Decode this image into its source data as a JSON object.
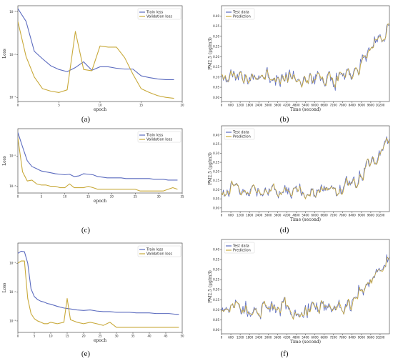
{
  "chart_data": [
    {
      "panel": "(a)",
      "type": "line",
      "xlabel": "epoch",
      "ylabel": "Loss",
      "xlim": [
        0,
        20
      ],
      "yscale": "log",
      "ylim": [
        0.0008,
        0.14
      ],
      "xticks": [
        0,
        5,
        10,
        15,
        20
      ],
      "yticks": [
        {
          "v": 0.1,
          "label": "10⁻¹"
        },
        {
          "v": 0.01,
          "label": "10⁻²"
        },
        {
          "v": 0.001,
          "label": "10⁻³"
        }
      ],
      "legend": "top-right",
      "series": [
        {
          "name": "Train loss",
          "color": "#5b6bbf",
          "x": [
            0,
            1,
            2,
            3,
            4,
            5,
            6,
            7,
            8,
            9,
            10,
            11,
            12,
            13,
            14,
            15,
            16,
            17,
            18,
            19
          ],
          "y": [
            0.12,
            0.06,
            0.012,
            0.008,
            0.0055,
            0.0045,
            0.004,
            0.005,
            0.0068,
            0.0043,
            0.0052,
            0.0052,
            0.0048,
            0.0046,
            0.0046,
            0.0032,
            0.0029,
            0.0027,
            0.0026,
            0.0026
          ]
        },
        {
          "name": "Validation loss",
          "color": "#c8a93a",
          "x": [
            0,
            1,
            2,
            3,
            4,
            5,
            6,
            7,
            8,
            9,
            10,
            11,
            12,
            13,
            14,
            15,
            16,
            17,
            18,
            19
          ],
          "y": [
            0.06,
            0.009,
            0.003,
            0.0016,
            0.0014,
            0.0013,
            0.0015,
            0.035,
            0.0045,
            0.0042,
            0.016,
            0.015,
            0.015,
            0.0085,
            0.0035,
            0.0016,
            0.0013,
            0.0011,
            0.001,
            0.00095
          ]
        }
      ]
    },
    {
      "panel": "(b)",
      "type": "line",
      "xlabel": "Time (second)",
      "ylabel": "PM2.5 (μg/m3)",
      "xlim": [
        0,
        10800
      ],
      "ylim": [
        -0.02,
        0.45
      ],
      "xticks": [
        0,
        600,
        1200,
        1800,
        2400,
        3000,
        3600,
        4200,
        4800,
        5400,
        6000,
        6600,
        7200,
        7800,
        8400,
        9000,
        9600,
        10200
      ],
      "yticks": [
        0.0,
        0.05,
        0.1,
        0.15,
        0.2,
        0.25,
        0.3,
        0.35,
        0.4
      ],
      "legend": "top-left",
      "seed": 11,
      "series": [
        {
          "name": "Test data",
          "color": "#5b6bbf"
        },
        {
          "name": "Prediction",
          "color": "#c8a93a"
        }
      ]
    },
    {
      "panel": "(c)",
      "type": "line",
      "xlabel": "epoch",
      "ylabel": "Loss",
      "xlim": [
        0,
        35
      ],
      "yscale": "log",
      "ylim": [
        0.0006,
        0.08
      ],
      "xticks": [
        0,
        5,
        10,
        15,
        20,
        25,
        30,
        35
      ],
      "yticks": [
        {
          "v": 0.01,
          "label": "10⁻²"
        },
        {
          "v": 0.001,
          "label": "10⁻³"
        }
      ],
      "legend": "top-right",
      "series": [
        {
          "name": "Train loss",
          "color": "#5b6bbf",
          "x": [
            0,
            1,
            2,
            3,
            4,
            5,
            6,
            7,
            8,
            9,
            10,
            11,
            12,
            13,
            14,
            15,
            16,
            17,
            18,
            19,
            20,
            21,
            22,
            23,
            24,
            25,
            26,
            27,
            28,
            29,
            30,
            31,
            32,
            33,
            34
          ],
          "y": [
            0.06,
            0.02,
            0.007,
            0.0045,
            0.0038,
            0.0032,
            0.003,
            0.0028,
            0.0026,
            0.0025,
            0.0024,
            0.0025,
            0.0021,
            0.0022,
            0.0026,
            0.0025,
            0.0024,
            0.0021,
            0.002,
            0.0019,
            0.0019,
            0.0019,
            0.0019,
            0.0018,
            0.0018,
            0.0018,
            0.0018,
            0.0018,
            0.0018,
            0.0017,
            0.0017,
            0.0017,
            0.0016,
            0.0016,
            0.0016
          ]
        },
        {
          "name": "Validation loss",
          "color": "#c8a93a",
          "x": [
            0,
            1,
            2,
            3,
            4,
            5,
            6,
            7,
            8,
            9,
            10,
            11,
            12,
            13,
            14,
            15,
            16,
            17,
            18,
            19,
            20,
            21,
            22,
            23,
            24,
            25,
            26,
            27,
            28,
            29,
            30,
            31,
            32,
            33,
            34
          ],
          "y": [
            0.04,
            0.003,
            0.0015,
            0.0016,
            0.0012,
            0.0011,
            0.0011,
            0.001,
            0.001,
            0.0009,
            0.0009,
            0.0012,
            0.0009,
            0.0009,
            0.0009,
            0.001,
            0.0009,
            0.0008,
            0.0008,
            0.0008,
            0.0008,
            0.0008,
            0.0008,
            0.0008,
            0.0008,
            0.0008,
            0.0007,
            0.0007,
            0.0007,
            0.0007,
            0.0007,
            0.0007,
            0.0008,
            0.0009,
            0.0008
          ]
        }
      ]
    },
    {
      "panel": "(d)",
      "type": "line",
      "xlabel": "Time (second)",
      "ylabel": "PM2.5 (μg/m3)",
      "xlim": [
        0,
        10800
      ],
      "ylim": [
        -0.02,
        0.45
      ],
      "xticks": [
        0,
        600,
        1200,
        1800,
        2400,
        3000,
        3600,
        4200,
        4800,
        5400,
        6000,
        6600,
        7200,
        7800,
        8400,
        9000,
        9600,
        10200
      ],
      "yticks": [
        0.0,
        0.05,
        0.1,
        0.15,
        0.2,
        0.25,
        0.3,
        0.35,
        0.4
      ],
      "legend": "top-left",
      "seed": 23,
      "series": [
        {
          "name": "Test data",
          "color": "#5b6bbf"
        },
        {
          "name": "Prediction",
          "color": "#c8a93a"
        }
      ]
    },
    {
      "panel": "(e)",
      "type": "line",
      "xlabel": "epoch",
      "ylabel": "Loss",
      "xlim": [
        0,
        50
      ],
      "yscale": "log",
      "ylim": [
        0.0004,
        0.5
      ],
      "xticks": [
        0,
        5,
        10,
        15,
        20,
        25,
        30,
        35,
        40,
        45,
        50
      ],
      "yticks": [
        {
          "v": 0.1,
          "label": "10⁻¹"
        },
        {
          "v": 0.01,
          "label": "10⁻²"
        },
        {
          "v": 0.001,
          "label": "10⁻³"
        }
      ],
      "legend": "top-right",
      "series": [
        {
          "name": "Train loss",
          "color": "#5b6bbf",
          "x": [
            0,
            1,
            2,
            3,
            4,
            5,
            6,
            7,
            8,
            9,
            10,
            12,
            14,
            15,
            16,
            18,
            20,
            22,
            24,
            26,
            28,
            30,
            32,
            34,
            36,
            38,
            40,
            42,
            44,
            46,
            48,
            49
          ],
          "y": [
            0.22,
            0.26,
            0.25,
            0.1,
            0.013,
            0.007,
            0.0055,
            0.0048,
            0.0045,
            0.004,
            0.0038,
            0.0032,
            0.0028,
            0.0027,
            0.0026,
            0.0024,
            0.0023,
            0.0024,
            0.0022,
            0.0021,
            0.0021,
            0.002,
            0.002,
            0.002,
            0.0019,
            0.0019,
            0.0019,
            0.0018,
            0.0018,
            0.0018,
            0.0017,
            0.0017
          ]
        },
        {
          "name": "Validation loss",
          "color": "#c8a93a",
          "x": [
            0,
            1,
            2,
            3,
            4,
            5,
            6,
            7,
            8,
            9,
            10,
            12,
            14,
            15,
            16,
            18,
            20,
            22,
            24,
            26,
            28,
            30,
            32,
            34,
            36,
            38,
            40,
            42,
            44,
            46,
            48,
            49
          ],
          "y": [
            0.1,
            0.12,
            0.12,
            0.006,
            0.0018,
            0.0012,
            0.001,
            0.0009,
            0.0008,
            0.0008,
            0.0009,
            0.0008,
            0.0009,
            0.006,
            0.0011,
            0.0009,
            0.0008,
            0.0009,
            0.0008,
            0.0007,
            0.0009,
            0.0006,
            0.0006,
            0.0006,
            0.0006,
            0.0006,
            0.0006,
            0.0006,
            0.0006,
            0.0006,
            0.0006,
            0.0006
          ]
        }
      ]
    },
    {
      "panel": "(f)",
      "type": "line",
      "xlabel": "Time (second)",
      "ylabel": "PM2.5 (μg/m3)",
      "xlim": [
        0,
        10800
      ],
      "ylim": [
        -0.02,
        0.45
      ],
      "xticks": [
        0,
        600,
        1200,
        1800,
        2400,
        3000,
        3600,
        4200,
        4800,
        5400,
        6000,
        6600,
        7200,
        7800,
        8400,
        9000,
        9600,
        10200
      ],
      "yticks": [
        0.0,
        0.05,
        0.1,
        0.15,
        0.2,
        0.25,
        0.3,
        0.35,
        0.4
      ],
      "legend": "top-left",
      "seed": 37,
      "series": [
        {
          "name": "Test data",
          "color": "#5b6bbf"
        },
        {
          "name": "Prediction",
          "color": "#c8a93a"
        }
      ]
    }
  ]
}
